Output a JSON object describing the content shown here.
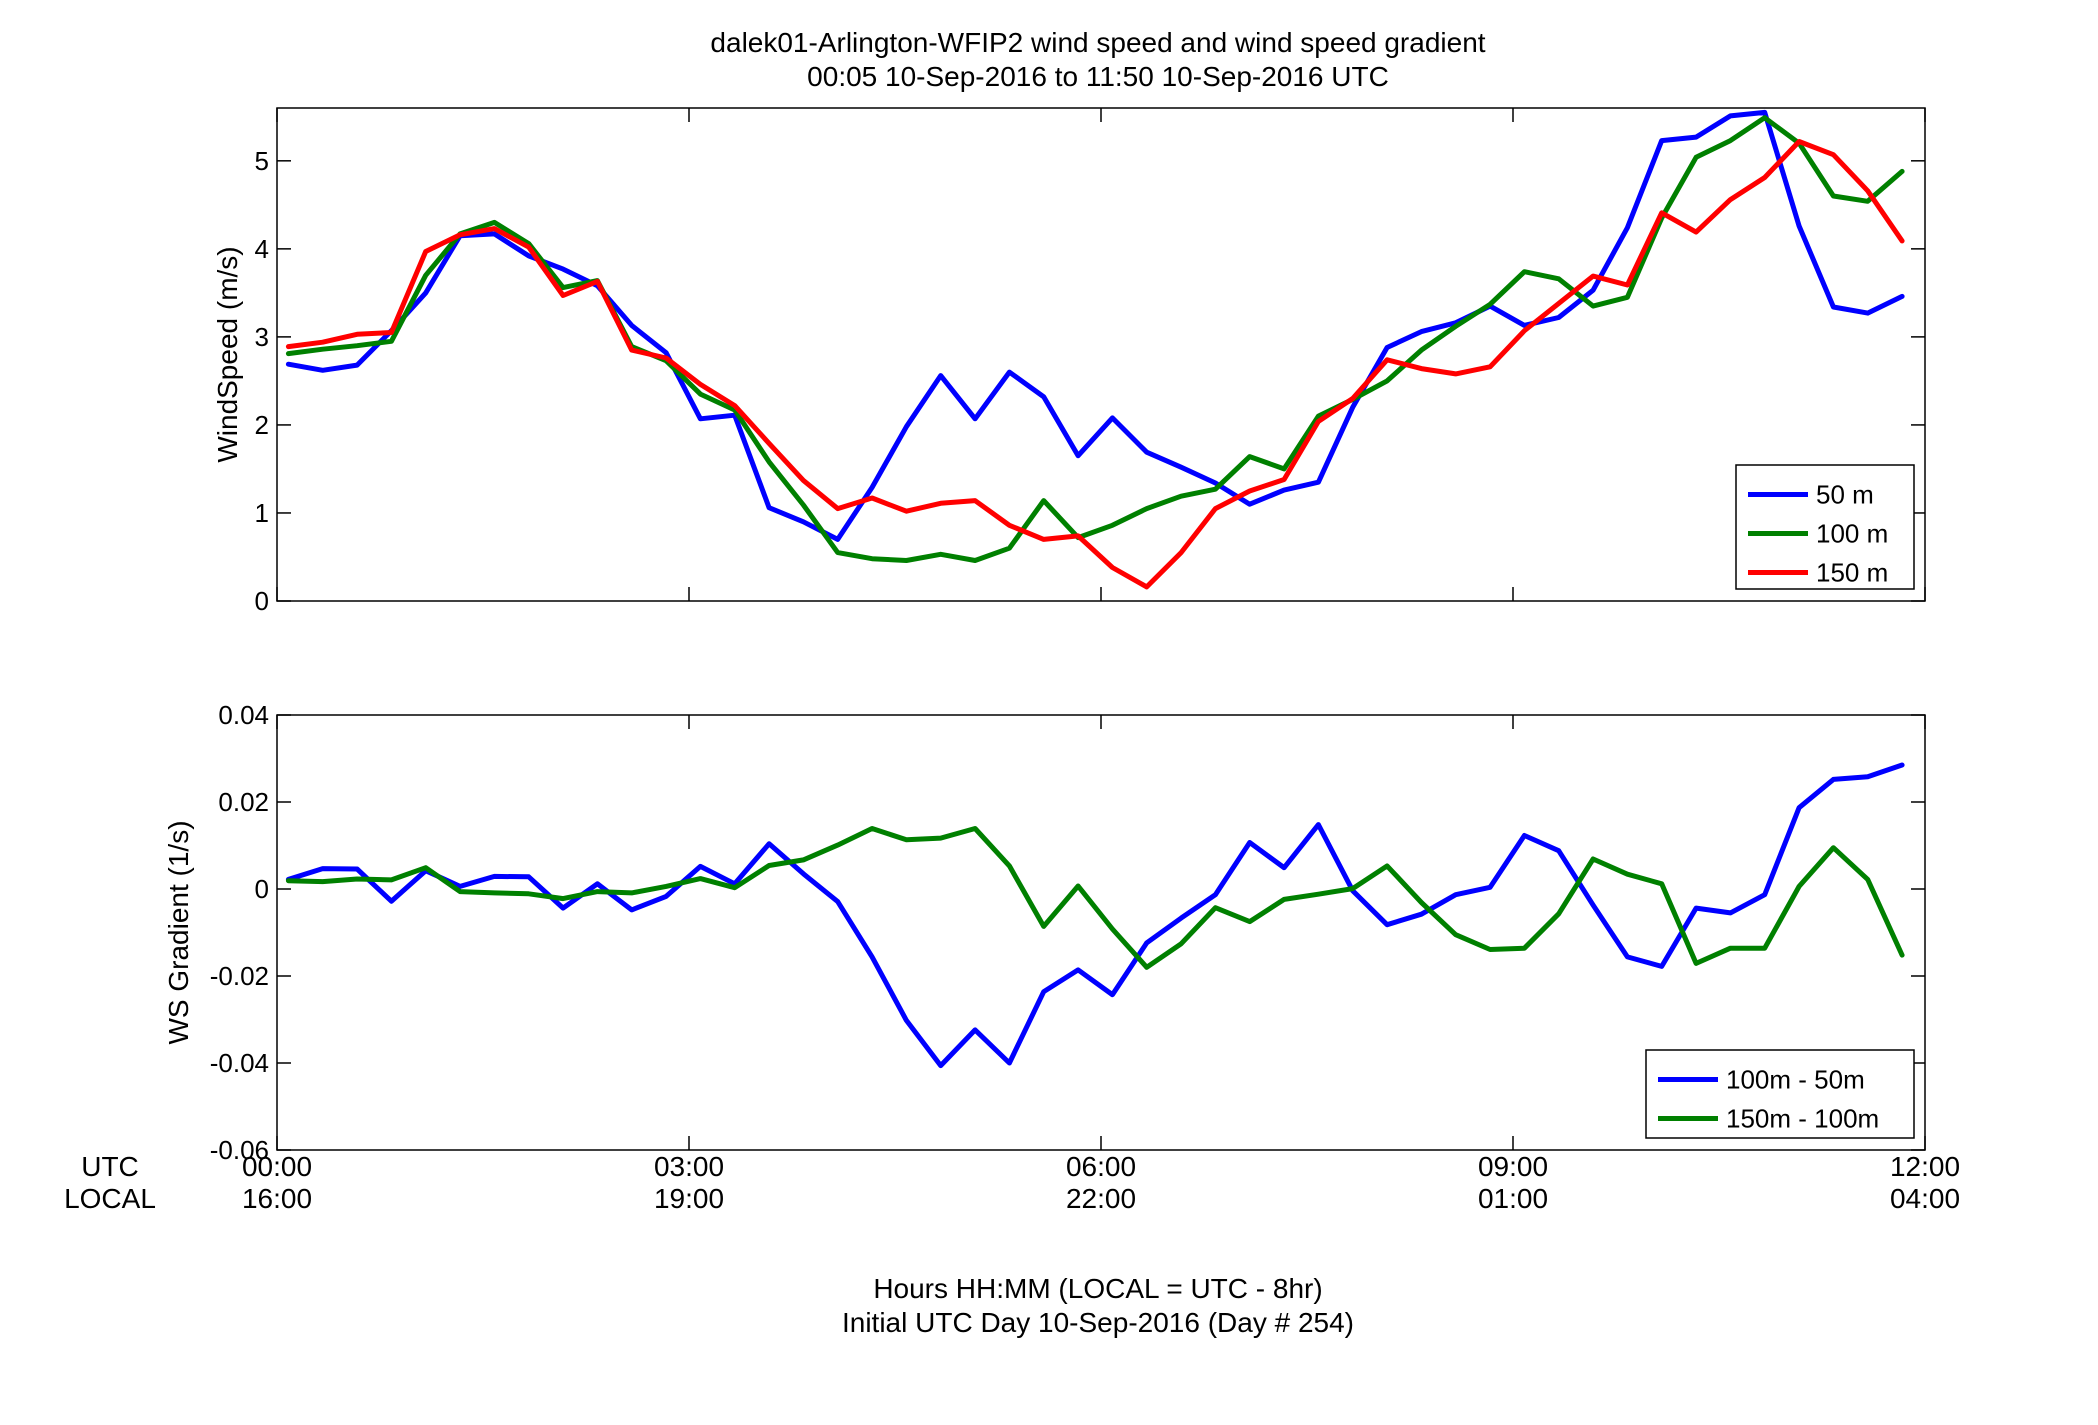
{
  "title_line1": "dalek01-Arlington-WFIP2  wind speed and wind speed gradient",
  "title_line2": "00:05 10-Sep-2016 to 11:50 10-Sep-2016  UTC",
  "xaxis_row_labels": {
    "utc": "UTC",
    "local": "LOCAL"
  },
  "xlabel_line1": "Hours HH:MM  (LOCAL = UTC - 8hr)",
  "xlabel_line2": "Initial UTC Day 10-Sep-2016 (Day # 254)",
  "x_ticks": [
    {
      "utc": "00:00",
      "local": "16:00",
      "value": 0
    },
    {
      "utc": "03:00",
      "local": "19:00",
      "value": 3
    },
    {
      "utc": "06:00",
      "local": "22:00",
      "value": 6
    },
    {
      "utc": "09:00",
      "local": "01:00",
      "value": 9
    },
    {
      "utc": "12:00",
      "local": "04:00",
      "value": 12
    }
  ],
  "chart_data": [
    {
      "type": "line",
      "ylabel": "WindSpeed (m/s)",
      "xlim": [
        0,
        12
      ],
      "ylim": [
        0,
        5.6
      ],
      "yticks": [
        0,
        1,
        2,
        3,
        4,
        5
      ],
      "ytick_labels": [
        "0",
        "1",
        "2",
        "3",
        "4",
        "5"
      ],
      "legend_position": "bottom-right",
      "grid": false,
      "x": [
        0.083,
        0.333,
        0.583,
        0.833,
        1.083,
        1.333,
        1.583,
        1.833,
        2.083,
        2.333,
        2.583,
        2.833,
        3.083,
        3.333,
        3.583,
        3.833,
        4.083,
        4.333,
        4.583,
        4.833,
        5.083,
        5.333,
        5.583,
        5.833,
        6.083,
        6.333,
        6.583,
        6.833,
        7.083,
        7.333,
        7.583,
        7.833,
        8.083,
        8.333,
        8.583,
        8.833,
        9.083,
        9.333,
        9.583,
        9.833,
        10.083,
        10.333,
        10.583,
        10.833,
        11.083,
        11.333,
        11.583,
        11.833
      ],
      "series": [
        {
          "name": "50 m",
          "color": "#0000ff",
          "values": [
            2.69,
            2.62,
            2.68,
            3.07,
            3.5,
            4.15,
            4.17,
            3.92,
            3.77,
            3.58,
            3.13,
            2.82,
            2.07,
            2.11,
            1.06,
            0.9,
            0.7,
            1.29,
            1.98,
            2.56,
            2.07,
            2.6,
            2.32,
            1.65,
            2.08,
            1.69,
            1.52,
            1.34,
            1.1,
            1.26,
            1.35,
            2.2,
            2.88,
            3.06,
            3.16,
            3.35,
            3.13,
            3.22,
            3.53,
            4.24,
            5.23,
            5.27,
            5.51,
            5.55,
            4.26,
            3.34,
            3.27,
            3.46
          ]
        },
        {
          "name": "100 m",
          "color": "#008000",
          "values": [
            2.81,
            2.86,
            2.9,
            2.95,
            3.7,
            4.17,
            4.3,
            4.06,
            3.56,
            3.64,
            2.89,
            2.73,
            2.35,
            2.17,
            1.58,
            1.09,
            0.55,
            0.48,
            0.46,
            0.53,
            0.46,
            0.6,
            1.14,
            0.72,
            0.86,
            1.05,
            1.19,
            1.27,
            1.64,
            1.5,
            2.1,
            2.29,
            2.5,
            2.85,
            3.12,
            3.37,
            3.74,
            3.66,
            3.35,
            3.45,
            4.35,
            5.04,
            5.23,
            5.49,
            5.2,
            4.6,
            4.54,
            4.88
          ]
        },
        {
          "name": "150 m",
          "color": "#ff0000",
          "values": [
            2.89,
            2.94,
            3.03,
            3.05,
            3.97,
            4.16,
            4.23,
            4.02,
            3.47,
            3.63,
            2.85,
            2.76,
            2.46,
            2.22,
            1.79,
            1.37,
            1.05,
            1.17,
            1.02,
            1.11,
            1.14,
            0.86,
            0.7,
            0.74,
            0.38,
            0.16,
            0.55,
            1.05,
            1.25,
            1.38,
            2.04,
            2.3,
            2.74,
            2.64,
            2.58,
            2.66,
            3.07,
            3.38,
            3.69,
            3.59,
            4.41,
            4.19,
            4.56,
            4.81,
            5.22,
            5.07,
            4.66,
            4.09
          ]
        }
      ]
    },
    {
      "type": "line",
      "ylabel": "WS Gradient (1/s)",
      "xlim": [
        0,
        12
      ],
      "ylim": [
        -0.06,
        0.04
      ],
      "yticks": [
        -0.06,
        -0.04,
        -0.02,
        0,
        0.02,
        0.04
      ],
      "ytick_labels": [
        "-0.06",
        "-0.04",
        "-0.02",
        "0",
        "0.02",
        "0.04"
      ],
      "legend_position": "bottom-right",
      "grid": false,
      "x": [
        0.083,
        0.333,
        0.583,
        0.833,
        1.083,
        1.333,
        1.583,
        1.833,
        2.083,
        2.333,
        2.583,
        2.833,
        3.083,
        3.333,
        3.583,
        3.833,
        4.083,
        4.333,
        4.583,
        4.833,
        5.083,
        5.333,
        5.583,
        5.833,
        6.083,
        6.333,
        6.583,
        6.833,
        7.083,
        7.333,
        7.583,
        7.833,
        8.083,
        8.333,
        8.583,
        8.833,
        9.083,
        9.333,
        9.583,
        9.833,
        10.083,
        10.333,
        10.583,
        10.833,
        11.083,
        11.333,
        11.583,
        11.833
      ],
      "series": [
        {
          "name": "100m - 50m",
          "color": "#0000ff",
          "values": [
            0.0022,
            0.0047,
            0.0046,
            -0.0028,
            0.0042,
            0.0006,
            0.0029,
            0.0028,
            -0.0044,
            0.0012,
            -0.0048,
            -0.0017,
            0.0052,
            0.0012,
            0.0104,
            0.0035,
            -0.0029,
            -0.0156,
            -0.0302,
            -0.0406,
            -0.0324,
            -0.04,
            -0.0236,
            -0.0186,
            -0.0243,
            -0.0124,
            -0.0067,
            -0.0013,
            0.0107,
            0.0049,
            0.0148,
            -0.0004,
            -0.0082,
            -0.0058,
            -0.0013,
            0.0004,
            0.0123,
            0.0088,
            -0.0037,
            -0.0156,
            -0.0178,
            -0.0044,
            -0.0055,
            -0.0013,
            0.0187,
            0.0252,
            0.0258,
            0.0285
          ]
        },
        {
          "name": "150m - 100m",
          "color": "#008000",
          "values": [
            0.0019,
            0.0017,
            0.0023,
            0.0021,
            0.0049,
            -0.0006,
            -0.0009,
            -0.0011,
            -0.0022,
            -0.0006,
            -0.0009,
            0.0006,
            0.0024,
            0.0003,
            0.0054,
            0.0067,
            0.0101,
            0.0139,
            0.0113,
            0.0117,
            0.0139,
            0.0053,
            -0.0086,
            0.0007,
            -0.0092,
            -0.018,
            -0.0126,
            -0.0043,
            -0.0075,
            -0.0024,
            -0.0012,
            0.0001,
            0.0053,
            -0.0031,
            -0.0105,
            -0.0139,
            -0.0136,
            -0.0057,
            0.0069,
            0.0034,
            0.0012,
            -0.0171,
            -0.0136,
            -0.0136,
            0.0006,
            0.0095,
            0.0022,
            -0.0152
          ]
        }
      ]
    }
  ]
}
